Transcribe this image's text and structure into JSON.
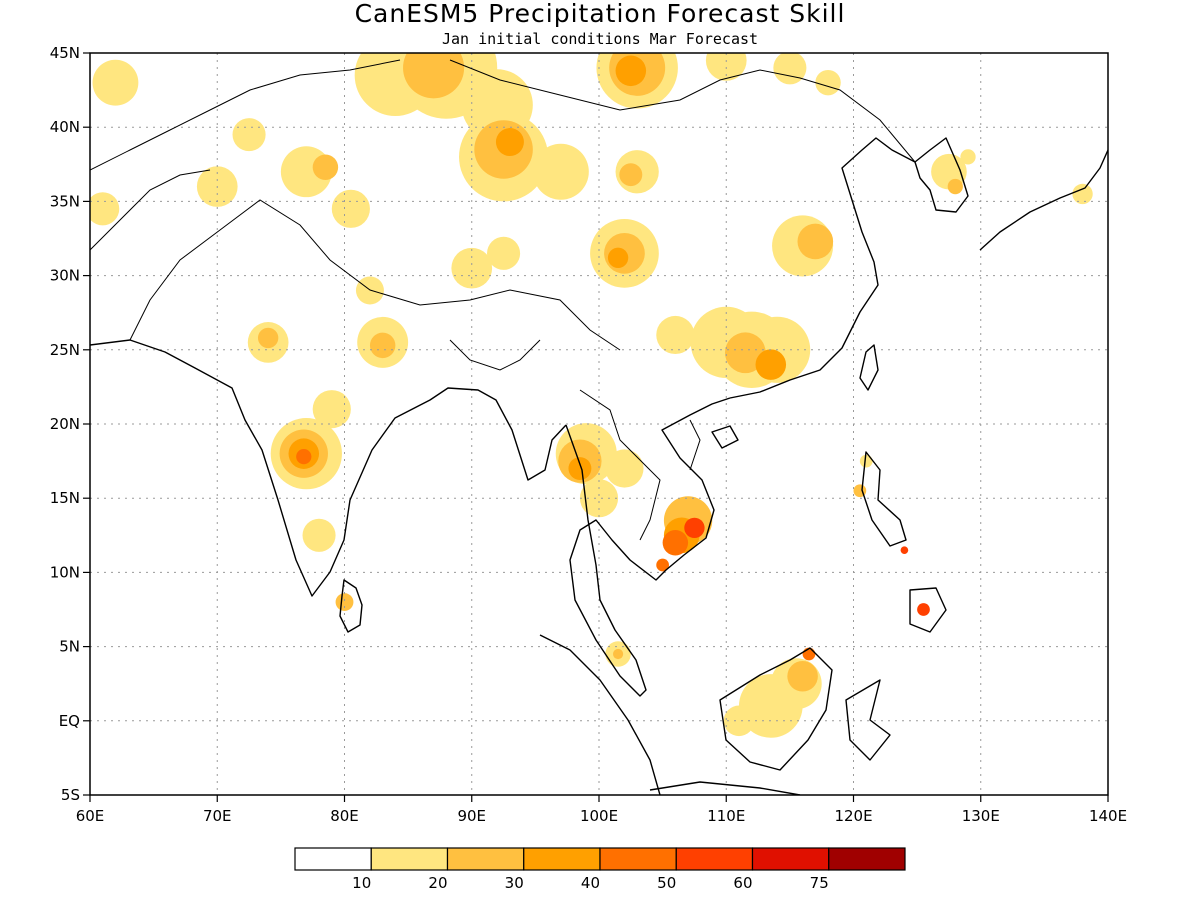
{
  "title": "CanESM5 Precipitation Forecast Skill",
  "subtitle": "Jan initial conditions  Mar Forecast",
  "axes": {
    "x_ticks": [
      {
        "value": 60,
        "label": "60E"
      },
      {
        "value": 70,
        "label": "70E"
      },
      {
        "value": 80,
        "label": "80E"
      },
      {
        "value": 90,
        "label": "90E"
      },
      {
        "value": 100,
        "label": "100E"
      },
      {
        "value": 110,
        "label": "110E"
      },
      {
        "value": 120,
        "label": "120E"
      },
      {
        "value": 130,
        "label": "130E"
      },
      {
        "value": 140,
        "label": "140E"
      }
    ],
    "y_ticks": [
      {
        "value": 45,
        "label": "45N"
      },
      {
        "value": 40,
        "label": "40N"
      },
      {
        "value": 35,
        "label": "35N"
      },
      {
        "value": 30,
        "label": "30N"
      },
      {
        "value": 25,
        "label": "25N"
      },
      {
        "value": 20,
        "label": "20N"
      },
      {
        "value": 15,
        "label": "15N"
      },
      {
        "value": 10,
        "label": "10N"
      },
      {
        "value": 5,
        "label": "5N"
      },
      {
        "value": 0,
        "label": "EQ"
      },
      {
        "value": -5,
        "label": "5S"
      }
    ],
    "lon_range": [
      60,
      140
    ],
    "lat_range": [
      -5,
      45
    ],
    "grid": true
  },
  "colorbar": {
    "colors": [
      "#ffffff",
      "#ffe680",
      "#ffc040",
      "#ffa000",
      "#ff7000",
      "#ff4000",
      "#e01000",
      "#a00000"
    ],
    "labels": [
      "10",
      "20",
      "30",
      "40",
      "50",
      "60",
      "75"
    ]
  },
  "regions": [
    {
      "lon": 77,
      "lat": 18,
      "r": 2.8,
      "level": 1
    },
    {
      "lon": 76.8,
      "lat": 18,
      "r": 1.9,
      "level": 2
    },
    {
      "lon": 76.8,
      "lat": 18,
      "r": 1.2,
      "level": 3
    },
    {
      "lon": 76.8,
      "lat": 17.8,
      "r": 0.6,
      "level": 4
    },
    {
      "lon": 79,
      "lat": 21,
      "r": 1.5,
      "level": 1
    },
    {
      "lon": 78,
      "lat": 12.5,
      "r": 1.3,
      "level": 1
    },
    {
      "lon": 80,
      "lat": 8,
      "r": 0.7,
      "level": 2
    },
    {
      "lon": 83,
      "lat": 25.5,
      "r": 2.0,
      "level": 1
    },
    {
      "lon": 83,
      "lat": 25.3,
      "r": 1.0,
      "level": 2
    },
    {
      "lon": 74,
      "lat": 25.5,
      "r": 1.6,
      "level": 1
    },
    {
      "lon": 74,
      "lat": 25.8,
      "r": 0.8,
      "level": 2
    },
    {
      "lon": 82,
      "lat": 29,
      "r": 1.1,
      "level": 1
    },
    {
      "lon": 84,
      "lat": 43.5,
      "r": 3.2,
      "level": 1
    },
    {
      "lon": 88,
      "lat": 44,
      "r": 4.0,
      "level": 1
    },
    {
      "lon": 87,
      "lat": 44,
      "r": 2.4,
      "level": 2
    },
    {
      "lon": 92,
      "lat": 41.5,
      "r": 2.8,
      "level": 1
    },
    {
      "lon": 92.5,
      "lat": 38,
      "r": 3.5,
      "level": 1
    },
    {
      "lon": 92.5,
      "lat": 38.5,
      "r": 2.3,
      "level": 2
    },
    {
      "lon": 93,
      "lat": 39,
      "r": 1.1,
      "level": 3
    },
    {
      "lon": 97,
      "lat": 37,
      "r": 2.2,
      "level": 1
    },
    {
      "lon": 103,
      "lat": 37,
      "r": 1.7,
      "level": 1
    },
    {
      "lon": 102.5,
      "lat": 36.8,
      "r": 0.9,
      "level": 2
    },
    {
      "lon": 103,
      "lat": 44,
      "r": 3.2,
      "level": 1
    },
    {
      "lon": 103,
      "lat": 44,
      "r": 2.2,
      "level": 2
    },
    {
      "lon": 102.5,
      "lat": 43.8,
      "r": 1.2,
      "level": 3
    },
    {
      "lon": 110,
      "lat": 44.5,
      "r": 1.6,
      "level": 1
    },
    {
      "lon": 62,
      "lat": 43,
      "r": 1.8,
      "level": 1
    },
    {
      "lon": 61,
      "lat": 34.5,
      "r": 1.3,
      "level": 1
    },
    {
      "lon": 70,
      "lat": 36,
      "r": 1.6,
      "level": 1
    },
    {
      "lon": 72.5,
      "lat": 39.5,
      "r": 1.3,
      "level": 1
    },
    {
      "lon": 77,
      "lat": 37,
      "r": 2.0,
      "level": 1
    },
    {
      "lon": 78.5,
      "lat": 37.3,
      "r": 1.0,
      "level": 2
    },
    {
      "lon": 80.5,
      "lat": 34.5,
      "r": 1.5,
      "level": 1
    },
    {
      "lon": 90,
      "lat": 30.5,
      "r": 1.6,
      "level": 1
    },
    {
      "lon": 92.5,
      "lat": 31.5,
      "r": 1.3,
      "level": 1
    },
    {
      "lon": 102,
      "lat": 31.5,
      "r": 2.7,
      "level": 1
    },
    {
      "lon": 102,
      "lat": 31.5,
      "r": 1.6,
      "level": 2
    },
    {
      "lon": 101.5,
      "lat": 31.2,
      "r": 0.8,
      "level": 3
    },
    {
      "lon": 116,
      "lat": 32,
      "r": 2.4,
      "level": 1
    },
    {
      "lon": 117,
      "lat": 32.3,
      "r": 1.4,
      "level": 2
    },
    {
      "lon": 115,
      "lat": 44,
      "r": 1.3,
      "level": 1
    },
    {
      "lon": 118,
      "lat": 43,
      "r": 1.0,
      "level": 1
    },
    {
      "lon": 112,
      "lat": 25,
      "r": 3.0,
      "level": 1
    },
    {
      "lon": 114,
      "lat": 25,
      "r": 2.6,
      "level": 1
    },
    {
      "lon": 110,
      "lat": 25.5,
      "r": 2.8,
      "level": 1
    },
    {
      "lon": 111.5,
      "lat": 24.8,
      "r": 1.6,
      "level": 2
    },
    {
      "lon": 113.5,
      "lat": 24,
      "r": 1.2,
      "level": 3
    },
    {
      "lon": 106,
      "lat": 26,
      "r": 1.5,
      "level": 1
    },
    {
      "lon": 99,
      "lat": 18,
      "r": 2.4,
      "level": 1
    },
    {
      "lon": 98.5,
      "lat": 17.5,
      "r": 1.7,
      "level": 2
    },
    {
      "lon": 98.5,
      "lat": 17,
      "r": 0.9,
      "level": 3
    },
    {
      "lon": 102,
      "lat": 17,
      "r": 1.5,
      "level": 1
    },
    {
      "lon": 100,
      "lat": 15,
      "r": 1.5,
      "level": 1
    },
    {
      "lon": 107,
      "lat": 13.5,
      "r": 1.9,
      "level": 2
    },
    {
      "lon": 106.5,
      "lat": 12.5,
      "r": 1.4,
      "level": 3
    },
    {
      "lon": 106,
      "lat": 12,
      "r": 1.0,
      "level": 4
    },
    {
      "lon": 107.5,
      "lat": 13,
      "r": 0.8,
      "level": 5
    },
    {
      "lon": 105,
      "lat": 10.5,
      "r": 0.5,
      "level": 4
    },
    {
      "lon": 101.5,
      "lat": 4.5,
      "r": 1.0,
      "level": 1
    },
    {
      "lon": 101.5,
      "lat": 4.5,
      "r": 0.4,
      "level": 2
    },
    {
      "lon": 113.5,
      "lat": 1,
      "r": 2.5,
      "level": 1
    },
    {
      "lon": 115.5,
      "lat": 2.5,
      "r": 2.0,
      "level": 1
    },
    {
      "lon": 116,
      "lat": 3,
      "r": 1.2,
      "level": 2
    },
    {
      "lon": 116.5,
      "lat": 4.5,
      "r": 0.5,
      "level": 4
    },
    {
      "lon": 111,
      "lat": 0,
      "r": 1.2,
      "level": 1
    },
    {
      "lon": 124,
      "lat": 11.5,
      "r": 0.3,
      "level": 5
    },
    {
      "lon": 125.5,
      "lat": 7.5,
      "r": 0.5,
      "level": 5
    },
    {
      "lon": 121,
      "lat": 17.5,
      "r": 0.5,
      "level": 1
    },
    {
      "lon": 120.5,
      "lat": 15.5,
      "r": 0.5,
      "level": 2
    },
    {
      "lon": 127.5,
      "lat": 37,
      "r": 1.4,
      "level": 1
    },
    {
      "lon": 128,
      "lat": 36,
      "r": 0.6,
      "level": 2
    },
    {
      "lon": 138,
      "lat": 35.5,
      "r": 0.8,
      "level": 1
    },
    {
      "lon": 129,
      "lat": 38,
      "r": 0.6,
      "level": 1
    }
  ]
}
